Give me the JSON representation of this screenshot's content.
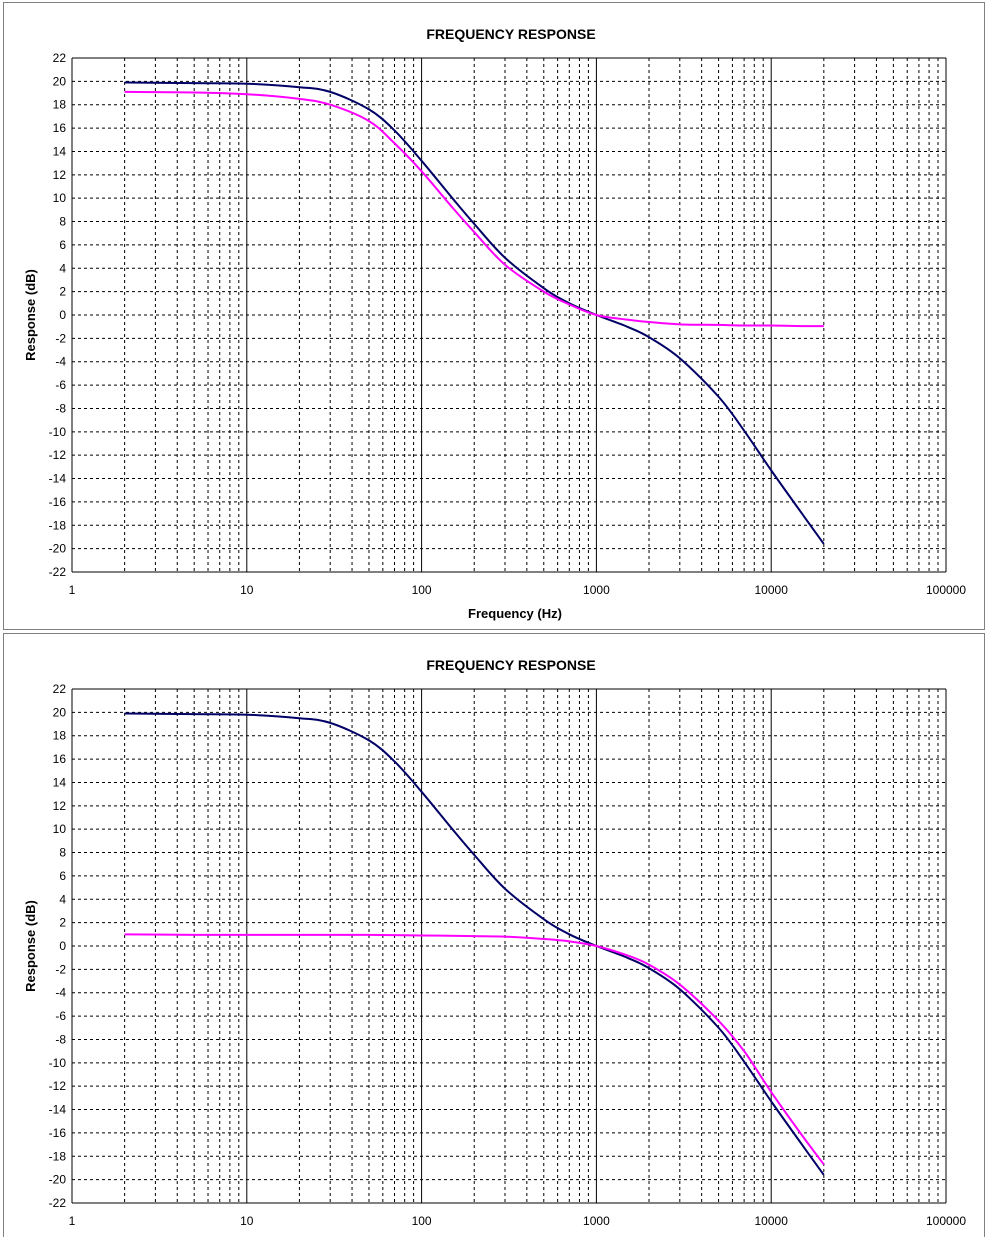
{
  "chart_data": [
    {
      "type": "line",
      "title": "FREQUENCY RESPONSE",
      "xlabel": "Frequency (Hz)",
      "ylabel": "Response (dB)",
      "xscale": "log",
      "xlim": [
        1,
        100000
      ],
      "ylim": [
        -22,
        22
      ],
      "grid": true,
      "xticks": [
        "1",
        "10",
        "100",
        "1000",
        "10000",
        "100000"
      ],
      "yticks": [
        "22",
        "20",
        "18",
        "16",
        "14",
        "12",
        "10",
        "8",
        "6",
        "4",
        "2",
        "0",
        "-2",
        "-4",
        "-6",
        "-8",
        "-10",
        "-12",
        "-14",
        "-16",
        "-18",
        "-20",
        "-22"
      ],
      "series": [
        {
          "color": "#000066",
          "x": [
            2,
            5,
            10,
            20,
            30,
            50,
            70,
            100,
            150,
            200,
            300,
            500,
            700,
            1000,
            1500,
            2000,
            3000,
            5000,
            7000,
            10000,
            15000,
            20000
          ],
          "y": [
            19.9,
            19.85,
            19.8,
            19.5,
            19.1,
            17.6,
            15.8,
            13.2,
            10.0,
            7.8,
            4.9,
            2.3,
            1.0,
            0.0,
            -1.0,
            -1.9,
            -3.7,
            -7.0,
            -9.9,
            -13.3,
            -17.0,
            -19.6
          ]
        },
        {
          "color": "#ff00ff",
          "x": [
            2,
            5,
            10,
            20,
            30,
            50,
            70,
            100,
            150,
            200,
            300,
            500,
            700,
            1000,
            1500,
            2000,
            3000,
            5000,
            7000,
            10000,
            15000,
            20000
          ],
          "y": [
            19.1,
            19.05,
            18.9,
            18.5,
            18.0,
            16.6,
            14.7,
            12.3,
            9.2,
            7.1,
            4.3,
            2.0,
            0.9,
            0.0,
            -0.4,
            -0.6,
            -0.8,
            -0.85,
            -0.9,
            -0.9,
            -0.95,
            -0.95
          ]
        }
      ]
    },
    {
      "type": "line",
      "title": "FREQUENCY RESPONSE",
      "xlabel": "",
      "ylabel": "Response (dB)",
      "xscale": "log",
      "xlim": [
        1,
        100000
      ],
      "ylim": [
        -22,
        22
      ],
      "grid": true,
      "xticks": [
        "1",
        "10",
        "100",
        "1000",
        "10000",
        "100000"
      ],
      "yticks": [
        "22",
        "20",
        "18",
        "16",
        "14",
        "12",
        "10",
        "8",
        "6",
        "4",
        "2",
        "0",
        "-2",
        "-4",
        "-6",
        "-8",
        "-10",
        "-12",
        "-14",
        "-16",
        "-18",
        "-20",
        "-22"
      ],
      "series": [
        {
          "color": "#000066",
          "x": [
            2,
            5,
            10,
            20,
            30,
            50,
            70,
            100,
            150,
            200,
            300,
            500,
            700,
            1000,
            1500,
            2000,
            3000,
            5000,
            7000,
            10000,
            15000,
            20000
          ],
          "y": [
            19.9,
            19.85,
            19.8,
            19.5,
            19.1,
            17.6,
            15.8,
            13.2,
            10.0,
            7.8,
            4.9,
            2.3,
            1.0,
            0.0,
            -1.0,
            -1.9,
            -3.7,
            -7.0,
            -9.9,
            -13.3,
            -17.0,
            -19.6
          ]
        },
        {
          "color": "#ff00ff",
          "x": [
            2,
            5,
            10,
            20,
            50,
            100,
            200,
            300,
            500,
            700,
            1000,
            1500,
            2000,
            3000,
            5000,
            7000,
            10000,
            15000,
            20000
          ],
          "y": [
            1.0,
            0.95,
            0.95,
            0.95,
            0.95,
            0.9,
            0.85,
            0.8,
            0.6,
            0.4,
            0.0,
            -0.8,
            -1.6,
            -3.3,
            -6.4,
            -9.0,
            -12.5,
            -16.2,
            -18.7
          ]
        }
      ]
    }
  ]
}
